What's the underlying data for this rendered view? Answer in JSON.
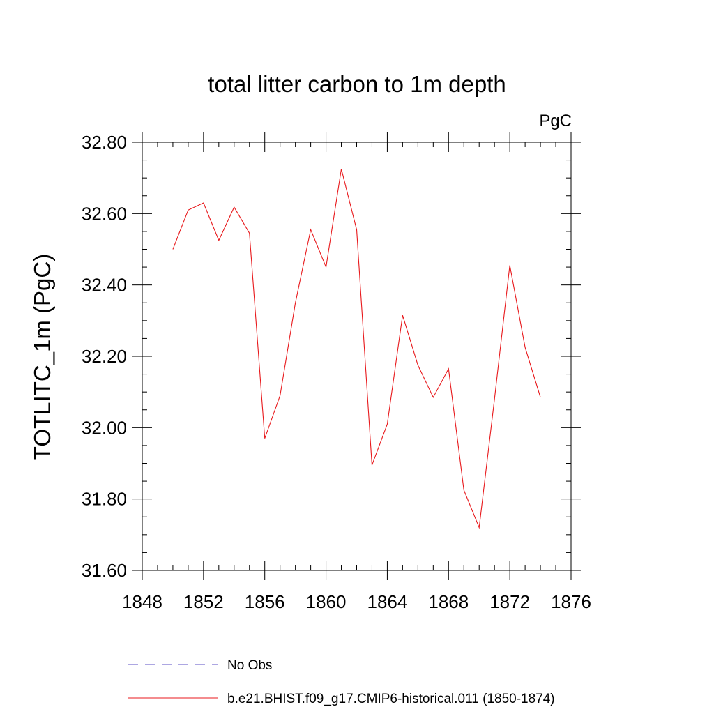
{
  "chart_data": {
    "type": "line",
    "title": "total litter carbon to 1m depth",
    "units_label": "PgC",
    "xlabel": "",
    "ylabel": "TOTLITC_1m  (PgC)",
    "xlim": [
      1848,
      1876
    ],
    "ylim": [
      31.6,
      32.8
    ],
    "x_ticks": [
      1848,
      1852,
      1856,
      1860,
      1864,
      1868,
      1872,
      1876
    ],
    "y_ticks": [
      31.6,
      31.8,
      32.0,
      32.2,
      32.4,
      32.6,
      32.8
    ],
    "x_tick_labels": [
      "1848",
      "1852",
      "1856",
      "1860",
      "1864",
      "1868",
      "1872",
      "1876"
    ],
    "y_tick_labels": [
      "31.60",
      "31.80",
      "32.00",
      "32.20",
      "32.40",
      "32.60",
      "32.80"
    ],
    "grid": false,
    "legend_position": "bottom",
    "legend": [
      {
        "label": "No Obs",
        "color": "#5b4fc4",
        "style": "dashed"
      },
      {
        "label": "b.e21.BHIST.f09_g17.CMIP6-historical.011 (1850-1874)",
        "color": "#e8191c",
        "style": "solid"
      }
    ],
    "series": [
      {
        "name": "b.e21.BHIST.f09_g17.CMIP6-historical.011 (1850-1874)",
        "color": "#e8191c",
        "x": [
          1850,
          1851,
          1852,
          1853,
          1854,
          1855,
          1856,
          1857,
          1858,
          1859,
          1860,
          1861,
          1862,
          1863,
          1864,
          1865,
          1866,
          1867,
          1868,
          1869,
          1870,
          1871,
          1872,
          1873,
          1874
        ],
        "values": [
          32.5,
          32.61,
          32.63,
          32.525,
          32.618,
          32.545,
          31.97,
          32.09,
          32.35,
          32.555,
          32.45,
          32.725,
          32.555,
          31.895,
          32.01,
          32.315,
          32.175,
          32.085,
          32.165,
          31.825,
          31.72,
          32.08,
          32.455,
          32.225,
          32.085
        ]
      }
    ]
  }
}
